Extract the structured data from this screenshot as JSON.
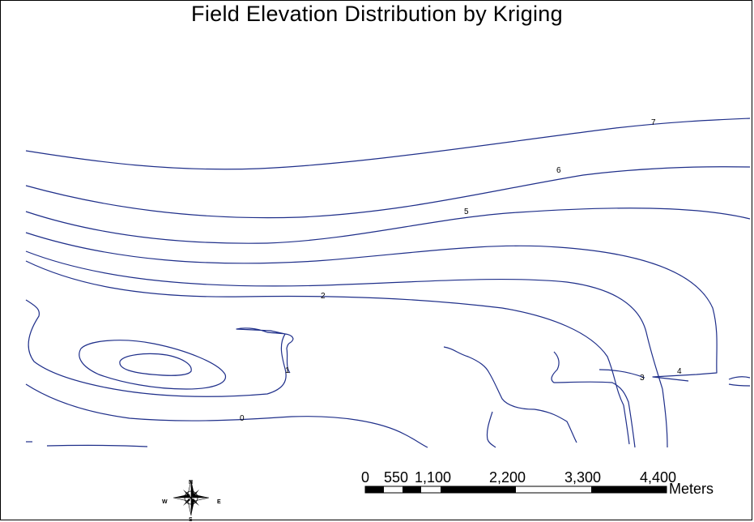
{
  "map": {
    "title": "Field Elevation Distribution by Kriging",
    "line_color": "#1f2f8a",
    "contour_labels": [
      "7",
      "6",
      "5",
      "4",
      "3",
      "2",
      "1",
      "0"
    ]
  },
  "scale_bar": {
    "ticks": [
      "0",
      "550",
      "1,100",
      "2,200",
      "3,300",
      "4,400"
    ],
    "unit": "Meters"
  },
  "compass": {
    "icon": "north-arrow-icon",
    "north": "N",
    "south": "S",
    "east": "E",
    "west": "W"
  }
}
